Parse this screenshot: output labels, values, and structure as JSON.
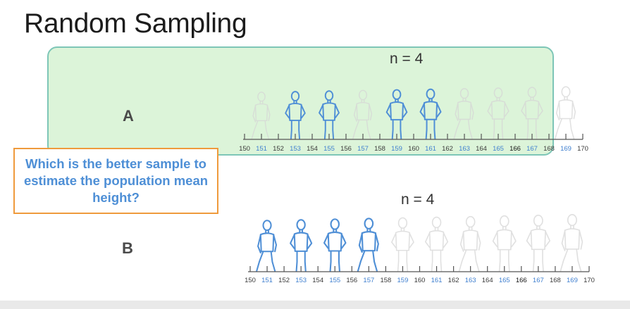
{
  "title": "Random Sampling",
  "question": "Which is the better sample to estimate the population mean height?",
  "samples": [
    {
      "label": "A",
      "n_label": "n = 4",
      "axis": {
        "min": 150,
        "max": 170,
        "ticks": [
          "150",
          "151",
          "152",
          "153",
          "154",
          "155",
          "156",
          "157",
          "158",
          "159",
          "160",
          "161",
          "162",
          "163",
          "164",
          "165",
          "166",
          "167",
          "168",
          "169",
          "170"
        ]
      },
      "selected_heights": [
        153,
        155,
        159,
        161
      ]
    },
    {
      "label": "B",
      "n_label": "n = 4",
      "axis": {
        "min": 150,
        "max": 170,
        "ticks": [
          "150",
          "151",
          "152",
          "153",
          "154",
          "155",
          "156",
          "157",
          "158",
          "159",
          "160",
          "161",
          "162",
          "163",
          "164",
          "165",
          "166",
          "167",
          "168",
          "169",
          "170"
        ]
      },
      "selected_heights": [
        151,
        153,
        155,
        157
      ]
    }
  ],
  "population_heights": [
    151,
    153,
    155,
    157,
    159,
    161,
    163,
    165,
    167,
    169
  ],
  "colors": {
    "selected_figure": "#4f8fd6",
    "faded_figure": "#d6d6d6",
    "odd_tick": "#3f7fcf",
    "even_tick": "#3a3a3a",
    "emphasis_tick": "#111111",
    "panel_fill": "#d3f2cf",
    "panel_border": "#5ab7a3",
    "question_border": "#ef9a3c",
    "question_text": "#4e8fd6"
  },
  "emphasis_tick": "166"
}
